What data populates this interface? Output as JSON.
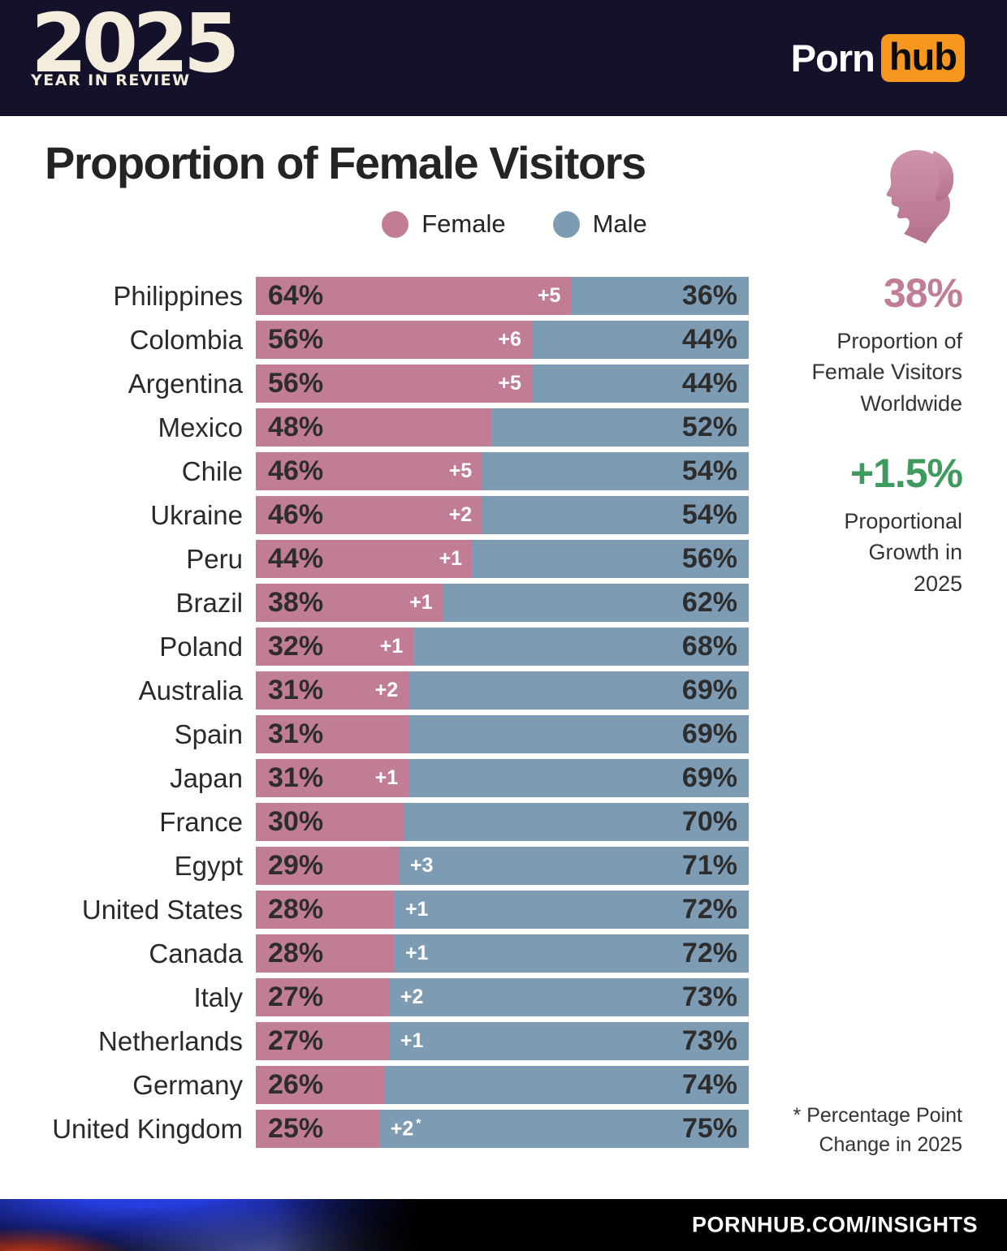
{
  "header": {
    "year": "2025",
    "year_subtitle": "YEAR IN REVIEW",
    "brand_part1": "Porn",
    "brand_part2": "hub"
  },
  "title": "Proportion of Female Visitors",
  "legend": {
    "female": "Female",
    "male": "Male"
  },
  "colors": {
    "female_bar": "#c17d96",
    "male_bar": "#7e9bb4",
    "growth_green": "#3f9a60",
    "brand_orange": "#f7971d",
    "text_dark": "#2a2a2a"
  },
  "icons": {
    "female_head": "female-silhouette-icon"
  },
  "stats": {
    "worldwide_value": "38%",
    "worldwide_lines": [
      "Proportion of",
      "Female Visitors",
      "Worldwide"
    ],
    "growth_value": "+1.5%",
    "growth_lines": [
      "Proportional",
      "Growth in",
      "2025"
    ],
    "footnote_lines": [
      "* Percentage Point",
      "Change in 2025"
    ]
  },
  "footer": {
    "url": "PORNHUB.COM/INSIGHTS"
  },
  "chart_data": {
    "type": "bar",
    "orientation": "horizontal",
    "stacked": true,
    "title": "Proportion of Female Visitors",
    "series_names": [
      "Female",
      "Male"
    ],
    "unit": "%",
    "xlim": [
      0,
      100
    ],
    "annotation_note": "* Percentage Point Change in 2025",
    "rows": [
      {
        "country": "Philippines",
        "female": 64,
        "male": 36,
        "change": "+5"
      },
      {
        "country": "Colombia",
        "female": 56,
        "male": 44,
        "change": "+6"
      },
      {
        "country": "Argentina",
        "female": 56,
        "male": 44,
        "change": "+5"
      },
      {
        "country": "Mexico",
        "female": 48,
        "male": 52,
        "change": null
      },
      {
        "country": "Chile",
        "female": 46,
        "male": 54,
        "change": "+5"
      },
      {
        "country": "Ukraine",
        "female": 46,
        "male": 54,
        "change": "+2"
      },
      {
        "country": "Peru",
        "female": 44,
        "male": 56,
        "change": "+1"
      },
      {
        "country": "Brazil",
        "female": 38,
        "male": 62,
        "change": "+1"
      },
      {
        "country": "Poland",
        "female": 32,
        "male": 68,
        "change": "+1"
      },
      {
        "country": "Australia",
        "female": 31,
        "male": 69,
        "change": "+2"
      },
      {
        "country": "Spain",
        "female": 31,
        "male": 69,
        "change": null
      },
      {
        "country": "Japan",
        "female": 31,
        "male": 69,
        "change": "+1"
      },
      {
        "country": "France",
        "female": 30,
        "male": 70,
        "change": null
      },
      {
        "country": "Egypt",
        "female": 29,
        "male": 71,
        "change": "+3"
      },
      {
        "country": "United States",
        "female": 28,
        "male": 72,
        "change": "+1"
      },
      {
        "country": "Canada",
        "female": 28,
        "male": 72,
        "change": "+1"
      },
      {
        "country": "Italy",
        "female": 27,
        "male": 73,
        "change": "+2"
      },
      {
        "country": "Netherlands",
        "female": 27,
        "male": 73,
        "change": "+1"
      },
      {
        "country": "Germany",
        "female": 26,
        "male": 74,
        "change": null
      },
      {
        "country": "United Kingdom",
        "female": 25,
        "male": 75,
        "change": "+2",
        "change_footnote": true
      }
    ]
  }
}
